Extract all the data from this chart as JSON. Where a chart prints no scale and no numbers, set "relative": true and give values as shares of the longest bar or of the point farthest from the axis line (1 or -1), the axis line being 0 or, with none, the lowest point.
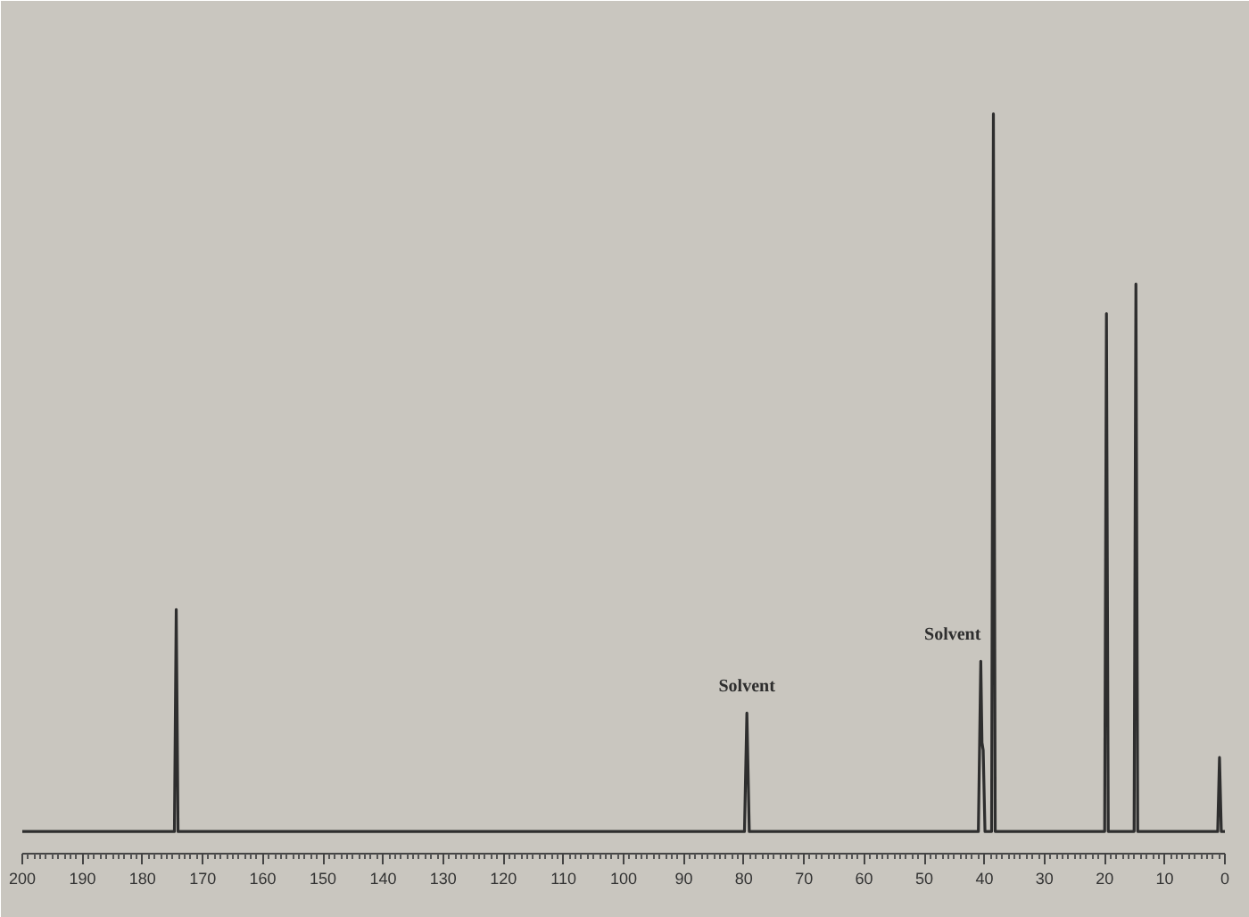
{
  "chart_data": {
    "type": "line",
    "relative": true,
    "grid": false,
    "xlim": [
      200,
      0
    ],
    "xticks": [
      200,
      190,
      180,
      170,
      160,
      150,
      140,
      130,
      120,
      110,
      100,
      90,
      80,
      70,
      60,
      50,
      40,
      30,
      20,
      10,
      0
    ],
    "series": [
      {
        "color": "#2e2e2e",
        "x": [
          200,
          174.7,
          174.4,
          174.1,
          79.9,
          79.5,
          79.1,
          41.0,
          40.6,
          40.4,
          40.2,
          39.9,
          38.8,
          38.5,
          38.2,
          20.0,
          19.7,
          19.4,
          15.1,
          14.8,
          14.5,
          1.2,
          0.9,
          0.6,
          0
        ],
        "values": [
          0.03,
          0.03,
          0.33,
          0.03,
          0.03,
          0.19,
          0.03,
          0.03,
          0.26,
          0.15,
          0.14,
          0.03,
          0.03,
          1,
          0.03,
          0.03,
          0.73,
          0.03,
          0.03,
          0.77,
          0.03,
          0.03,
          0.13,
          0.03,
          0.03
        ]
      }
    ],
    "annotations": [
      {
        "text": "Solvent",
        "x": 79.5,
        "y": 0.19
      },
      {
        "text": "Solvent",
        "x": 40.6,
        "y": 0.26
      }
    ]
  }
}
